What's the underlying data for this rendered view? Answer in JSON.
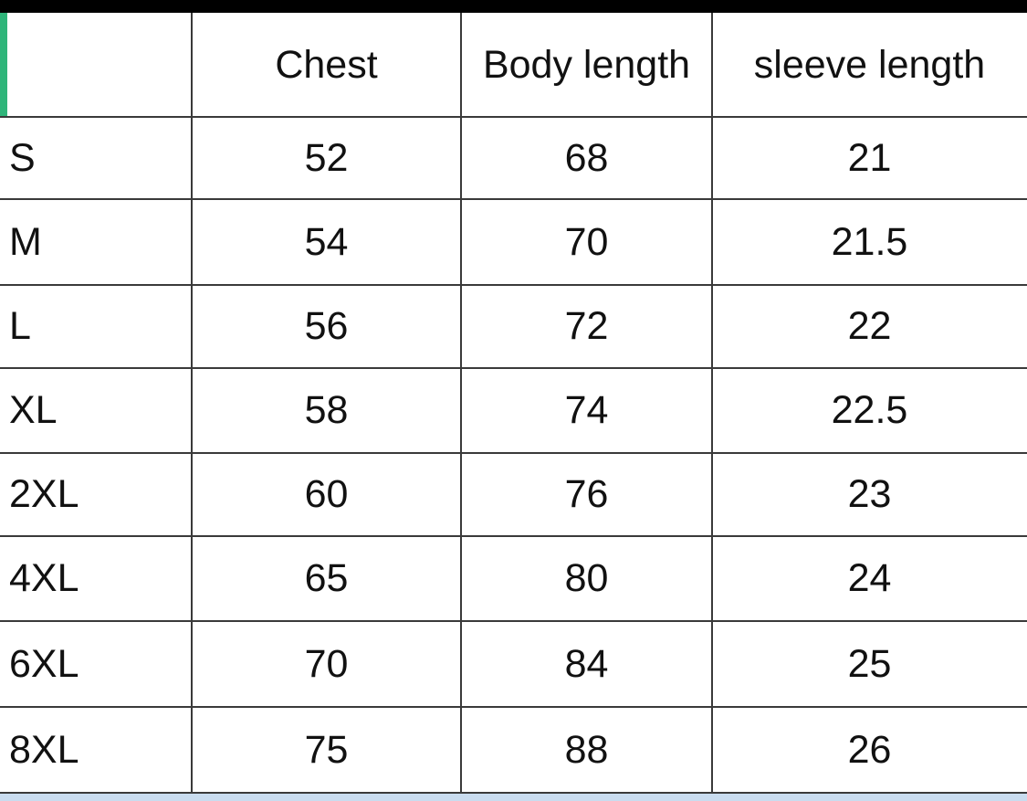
{
  "table": {
    "columns": [
      "Chest",
      "Body length",
      "sleeve length"
    ],
    "rows": [
      [
        "S",
        52,
        68,
        21
      ],
      [
        "M",
        54,
        70,
        21.5
      ],
      [
        "L",
        56,
        72,
        22
      ],
      [
        "XL",
        58,
        74,
        22.5
      ],
      [
        "2XL",
        60,
        76,
        23
      ],
      [
        "4XL",
        65,
        80,
        24
      ],
      [
        "6XL",
        70,
        84,
        25
      ],
      [
        "8XL",
        75,
        88,
        26
      ]
    ]
  }
}
